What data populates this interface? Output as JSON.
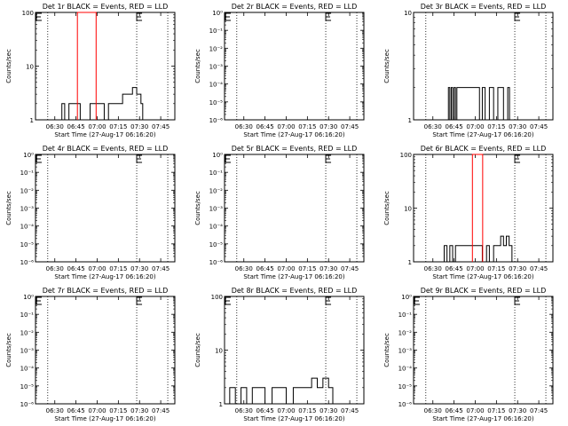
{
  "chart_data": [
    {
      "type": "line",
      "title": "Det 1r BLACK = Events, RED = LLD",
      "ylabel": "Counts/sec",
      "xlabel": "Start Time (27-Aug-17 06:16:20)",
      "x_ticks": [
        "06:30",
        "06:45",
        "07:00",
        "07:15",
        "07:30",
        "07:45"
      ],
      "y_scale": "log",
      "y_ticks": [
        "1",
        "10",
        "100"
      ],
      "ylim": [
        1,
        100
      ],
      "dotted_lines_at": [
        "06:25",
        "07:28",
        "07:50"
      ],
      "markers_E": [
        [
          "06:16",
          100
        ],
        [
          "07:28",
          100
        ]
      ],
      "series": [
        {
          "name": "Events",
          "color": "#000000",
          "x": [
            "06:33",
            "06:35",
            "06:37",
            "06:40",
            "06:44",
            "06:48",
            "06:55",
            "07:00",
            "07:05",
            "07:08",
            "07:12",
            "07:15",
            "07:18",
            "07:22",
            "07:25",
            "07:28",
            "07:31"
          ],
          "y": [
            1,
            2,
            1,
            2,
            2,
            1,
            2,
            2,
            1,
            2,
            2,
            2,
            3,
            3,
            4,
            3,
            2
          ]
        },
        {
          "name": "LLD",
          "color": "#ff0000",
          "x": [
            "06:46",
            "06:50",
            "06:54",
            "06:58"
          ],
          "y": [
            100,
            100,
            100,
            100
          ]
        }
      ]
    },
    {
      "type": "line",
      "title": "Det 2r BLACK = Events, RED = LLD",
      "ylabel": "Counts/sec",
      "xlabel": "Start Time (27-Aug-17 06:16:20)",
      "x_ticks": [
        "06:30",
        "06:45",
        "07:00",
        "07:15",
        "07:30",
        "07:45"
      ],
      "y_scale": "log",
      "y_ticks": [
        "10⁰",
        "10⁻¹",
        "10⁻²",
        "10⁻³",
        "10⁻⁴",
        "10⁻⁵",
        "10⁻⁶"
      ],
      "ylim": [
        1e-06,
        1
      ],
      "dotted_lines_at": [
        "06:25",
        "07:28",
        "07:50"
      ],
      "markers_E": [
        [
          "06:16",
          1
        ],
        [
          "07:28",
          1
        ]
      ],
      "series": []
    },
    {
      "type": "line",
      "title": "Det 3r BLACK = Events, RED = LLD",
      "ylabel": "Counts/sec",
      "xlabel": "Start Time (27-Aug-17 06:16:20)",
      "x_ticks": [
        "06:30",
        "06:45",
        "07:00",
        "07:15",
        "07:30",
        "07:45"
      ],
      "y_scale": "log",
      "y_ticks": [
        "1",
        "10"
      ],
      "ylim": [
        1,
        10
      ],
      "dotted_lines_at": [
        "06:25",
        "07:28",
        "07:50"
      ],
      "markers_E": [
        [
          "07:28",
          10
        ]
      ],
      "series": [
        {
          "name": "Events",
          "color": "#000000",
          "x": [
            "06:40",
            "06:41",
            "06:42",
            "06:43",
            "06:44",
            "06:45",
            "06:46",
            "06:47",
            "07:01",
            "07:03",
            "07:05",
            "07:07",
            "07:10",
            "07:13",
            "07:16",
            "07:20",
            "07:23"
          ],
          "y": [
            1,
            2,
            1,
            2,
            1,
            2,
            1,
            2,
            2,
            1,
            2,
            1,
            2,
            1,
            2,
            1,
            2
          ]
        }
      ]
    },
    {
      "type": "line",
      "title": "Det 4r BLACK = Events, RED = LLD",
      "ylabel": "Counts/sec",
      "xlabel": "Start Time (27-Aug-17 06:16:20)",
      "x_ticks": [
        "06:30",
        "06:45",
        "07:00",
        "07:15",
        "07:30",
        "07:45"
      ],
      "y_scale": "log",
      "y_ticks": [
        "10⁰",
        "10⁻¹",
        "10⁻²",
        "10⁻³",
        "10⁻⁴",
        "10⁻⁵",
        "10⁻⁶"
      ],
      "ylim": [
        1e-06,
        1
      ],
      "dotted_lines_at": [
        "06:25",
        "07:28",
        "07:50"
      ],
      "markers_E": [
        [
          "06:16",
          1
        ],
        [
          "07:28",
          1
        ]
      ],
      "series": []
    },
    {
      "type": "line",
      "title": "Det 5r BLACK = Events, RED = LLD",
      "ylabel": "Counts/sec",
      "xlabel": "Start Time (27-Aug-17 06:16:20)",
      "x_ticks": [
        "06:30",
        "06:45",
        "07:00",
        "07:15",
        "07:30",
        "07:45"
      ],
      "y_scale": "log",
      "y_ticks": [
        "10⁰",
        "10⁻¹",
        "10⁻²",
        "10⁻³",
        "10⁻⁴",
        "10⁻⁵",
        "10⁻⁶"
      ],
      "ylim": [
        1e-06,
        1
      ],
      "dotted_lines_at": [
        "06:25",
        "07:28",
        "07:50"
      ],
      "markers_E": [
        [
          "06:16",
          1
        ],
        [
          "07:28",
          1
        ]
      ],
      "series": []
    },
    {
      "type": "line",
      "title": "Det 6r BLACK = Events, RED = LLD",
      "ylabel": "Counts/sec",
      "xlabel": "Start Time (27-Aug-17 06:16:20)",
      "x_ticks": [
        "06:30",
        "06:45",
        "07:00",
        "07:15",
        "07:30",
        "07:45"
      ],
      "y_scale": "log",
      "y_ticks": [
        "1",
        "10",
        "100"
      ],
      "ylim": [
        1,
        100
      ],
      "dotted_lines_at": [
        "06:25",
        "07:28",
        "07:50"
      ],
      "markers_E": [
        [
          "07:28",
          100
        ]
      ],
      "series": [
        {
          "name": "Events",
          "color": "#000000",
          "x": [
            "06:36",
            "06:38",
            "06:40",
            "06:42",
            "06:44",
            "06:46",
            "07:05",
            "07:08",
            "07:10",
            "07:13",
            "07:16",
            "07:18",
            "07:20",
            "07:22",
            "07:24",
            "07:26"
          ],
          "y": [
            1,
            2,
            1,
            2,
            1,
            2,
            1,
            2,
            1,
            2,
            2,
            3,
            2,
            3,
            2,
            1
          ]
        },
        {
          "name": "LLD",
          "color": "#ff0000",
          "x": [
            "06:58",
            "07:00",
            "07:02",
            "07:04"
          ],
          "y": [
            100,
            100,
            100,
            100
          ]
        }
      ]
    },
    {
      "type": "line",
      "title": "Det 7r BLACK = Events, RED = LLD",
      "ylabel": "Counts/sec",
      "xlabel": "Start Time (27-Aug-17 06:16:20)",
      "x_ticks": [
        "06:30",
        "06:45",
        "07:00",
        "07:15",
        "07:30",
        "07:45"
      ],
      "y_scale": "log",
      "y_ticks": [
        "10⁰",
        "10⁻¹",
        "10⁻²",
        "10⁻³",
        "10⁻⁴",
        "10⁻⁵",
        "10⁻⁶"
      ],
      "ylim": [
        1e-06,
        1
      ],
      "dotted_lines_at": [
        "06:25",
        "07:28",
        "07:50"
      ],
      "markers_E": [
        [
          "06:16",
          1
        ],
        [
          "07:28",
          1
        ]
      ],
      "series": []
    },
    {
      "type": "line",
      "title": "Det 8r BLACK = Events, RED = LLD",
      "ylabel": "Counts/sec",
      "xlabel": "Start Time (27-Aug-17 06:16:20)",
      "x_ticks": [
        "06:30",
        "06:45",
        "07:00",
        "07:15",
        "07:30",
        "07:45"
      ],
      "y_scale": "log",
      "y_ticks": [
        "1",
        "10",
        "100"
      ],
      "ylim": [
        1,
        100
      ],
      "dotted_lines_at": [
        "06:25",
        "07:28",
        "07:50"
      ],
      "markers_E": [
        [
          "06:16",
          100
        ],
        [
          "07:28",
          100
        ]
      ],
      "series": [
        {
          "name": "Events",
          "color": "#000000",
          "x": [
            "06:20",
            "06:24",
            "06:28",
            "06:32",
            "06:36",
            "06:40",
            "06:45",
            "06:50",
            "06:55",
            "07:00",
            "07:05",
            "07:10",
            "07:15",
            "07:18",
            "07:22",
            "07:26",
            "07:30",
            "07:33"
          ],
          "y": [
            2,
            1,
            2,
            1,
            2,
            2,
            1,
            2,
            2,
            1,
            2,
            2,
            2,
            3,
            2,
            3,
            2,
            1
          ]
        }
      ]
    },
    {
      "type": "line",
      "title": "Det 9r BLACK = Events, RED = LLD",
      "ylabel": "Counts/sec",
      "xlabel": "Start Time (27-Aug-17 06:16:20)",
      "x_ticks": [
        "06:30",
        "06:45",
        "07:00",
        "07:15",
        "07:30",
        "07:45"
      ],
      "y_scale": "log",
      "y_ticks": [
        "10⁰",
        "10⁻¹",
        "10⁻²",
        "10⁻³",
        "10⁻⁴",
        "10⁻⁵",
        "10⁻⁶"
      ],
      "ylim": [
        1e-06,
        1
      ],
      "dotted_lines_at": [
        "06:25",
        "07:28",
        "07:50"
      ],
      "markers_E": [
        [
          "06:16",
          1
        ],
        [
          "07:28",
          1
        ]
      ],
      "series": []
    }
  ]
}
